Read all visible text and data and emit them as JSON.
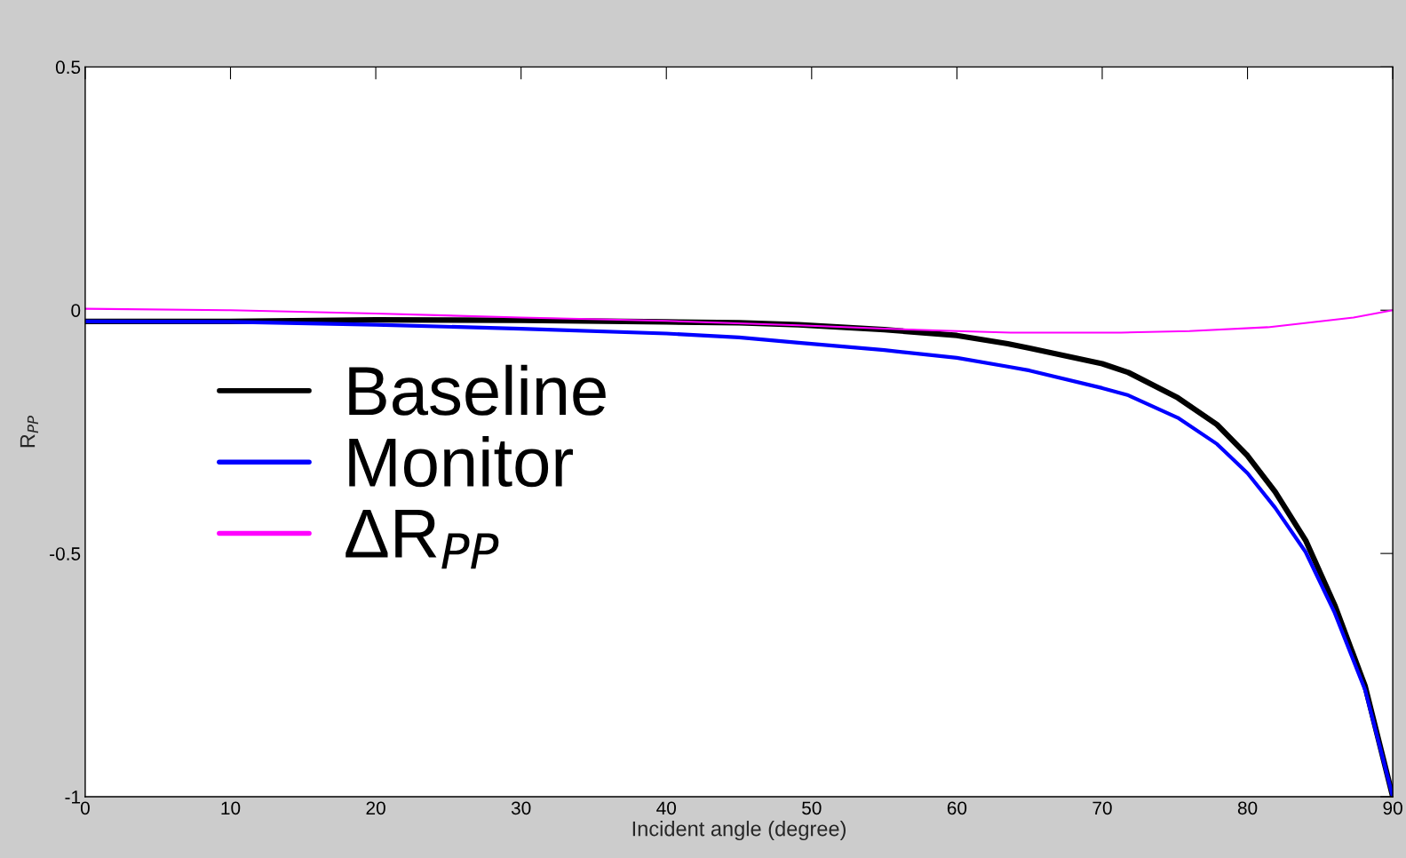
{
  "chart_data": {
    "type": "line",
    "xlabel": "Incident angle (degree)",
    "ylabel": "R$_{PP}$",
    "xlim": [
      0,
      90
    ],
    "ylim": [
      -1,
      0.5
    ],
    "xticks": [
      0,
      10,
      20,
      30,
      40,
      50,
      60,
      70,
      80,
      90
    ],
    "yticks": [
      -1,
      -0.5,
      0,
      0.5
    ],
    "grid": false,
    "legend": "left",
    "line_style": "solid",
    "marker": "none",
    "series": [
      {
        "name": "Baseline",
        "color": "#000000",
        "x": [
          0,
          10,
          20,
          30,
          40,
          45,
          49.1,
          55,
          60,
          63.5,
          65,
          70,
          71.8,
          75.2,
          77.9,
          80,
          81.9,
          84,
          86,
          88.1,
          90
        ],
        "values": [
          -0.023,
          -0.023,
          -0.02,
          -0.021,
          -0.024,
          -0.026,
          -0.03,
          -0.04,
          -0.052,
          -0.069,
          -0.078,
          -0.11,
          -0.128,
          -0.18,
          -0.235,
          -0.299,
          -0.373,
          -0.473,
          -0.606,
          -0.773,
          -1
        ]
      },
      {
        "name": "Monitor",
        "color": "#0000ff",
        "x": [
          0,
          10,
          20,
          30,
          40,
          45,
          49.1,
          55,
          60,
          63.5,
          65,
          70,
          71.8,
          75.2,
          77.9,
          80,
          81.9,
          84,
          86,
          88.1,
          90
        ],
        "values": [
          -0.023,
          -0.024,
          -0.03,
          -0.038,
          -0.048,
          -0.056,
          -0.067,
          -0.082,
          -0.098,
          -0.116,
          -0.124,
          -0.16,
          -0.175,
          -0.221,
          -0.275,
          -0.335,
          -0.406,
          -0.497,
          -0.622,
          -0.781,
          -1
        ]
      },
      {
        "name": "ΔR$_{PP}$",
        "color": "#ff00ff",
        "x": [
          0,
          10,
          20,
          30,
          40,
          49.1,
          55,
          60,
          63.7,
          71.3,
          76,
          81.4,
          87.3,
          90
        ],
        "values": [
          0.003,
          0.0,
          -0.007,
          -0.015,
          -0.022,
          -0.031,
          -0.038,
          -0.043,
          -0.046,
          -0.046,
          -0.043,
          -0.035,
          -0.015,
          0.0
        ]
      }
    ]
  }
}
